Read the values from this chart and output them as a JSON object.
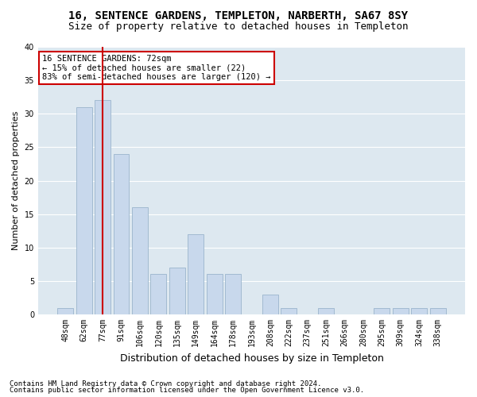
{
  "title1": "16, SENTENCE GARDENS, TEMPLETON, NARBERTH, SA67 8SY",
  "title2": "Size of property relative to detached houses in Templeton",
  "xlabel": "Distribution of detached houses by size in Templeton",
  "ylabel": "Number of detached properties",
  "categories": [
    "48sqm",
    "62sqm",
    "77sqm",
    "91sqm",
    "106sqm",
    "120sqm",
    "135sqm",
    "149sqm",
    "164sqm",
    "178sqm",
    "193sqm",
    "208sqm",
    "222sqm",
    "237sqm",
    "251sqm",
    "266sqm",
    "280sqm",
    "295sqm",
    "309sqm",
    "324sqm",
    "338sqm"
  ],
  "values": [
    1,
    31,
    32,
    24,
    16,
    6,
    7,
    12,
    6,
    6,
    0,
    3,
    1,
    0,
    1,
    0,
    0,
    1,
    1,
    1,
    1
  ],
  "bar_color": "#c8d8ec",
  "bar_edgecolor": "#9ab5cc",
  "highlight_index": 2,
  "highlight_line_color": "#cc0000",
  "ylim": [
    0,
    40
  ],
  "yticks": [
    0,
    5,
    10,
    15,
    20,
    25,
    30,
    35,
    40
  ],
  "annotation_line1": "16 SENTENCE GARDENS: 72sqm",
  "annotation_line2": "← 15% of detached houses are smaller (22)",
  "annotation_line3": "83% of semi-detached houses are larger (120) →",
  "annotation_box_facecolor": "#ffffff",
  "annotation_box_edgecolor": "#cc0000",
  "footer1": "Contains HM Land Registry data © Crown copyright and database right 2024.",
  "footer2": "Contains public sector information licensed under the Open Government Licence v3.0.",
  "fig_bg_color": "#ffffff",
  "plot_bg_color": "#dde8f0",
  "grid_color": "#ffffff",
  "title_fontsize": 10,
  "subtitle_fontsize": 9,
  "tick_fontsize": 7,
  "ylabel_fontsize": 8,
  "xlabel_fontsize": 9,
  "footer_fontsize": 6.5,
  "annotation_fontsize": 7.5
}
